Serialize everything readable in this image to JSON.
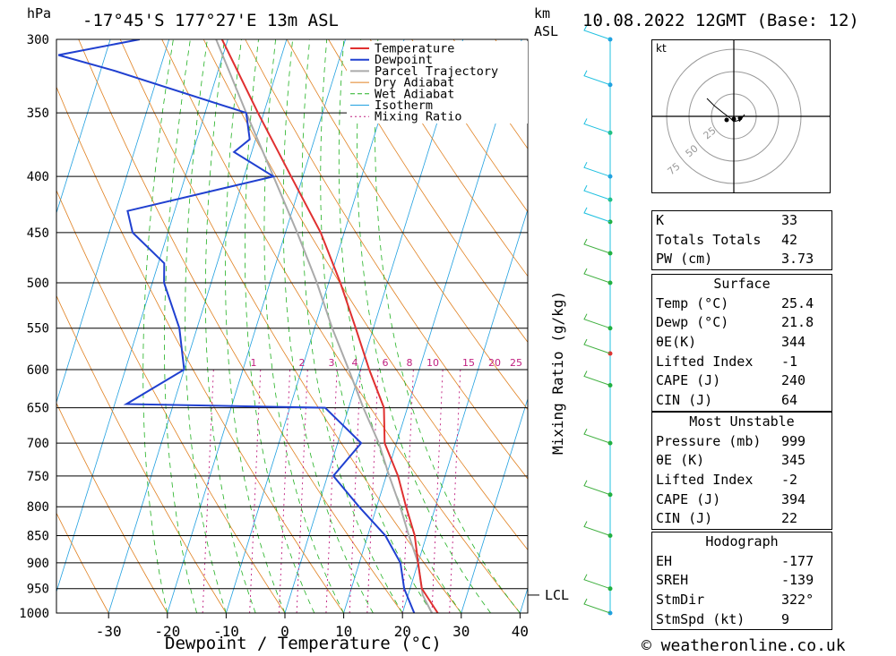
{
  "header": {
    "pressure_unit": "hPa",
    "location": "-17°45'S 177°27'E 13m ASL",
    "height_unit_top": "km",
    "height_unit_bottom": "ASL",
    "datetime": "10.08.2022 12GMT (Base: 12)"
  },
  "chart_data": {
    "type": "skew-t log-p",
    "xlabel": "Dewpoint / Temperature (°C)",
    "ylabel_right": "Mixing Ratio (g/kg)",
    "x_ticks": [
      -30,
      -20,
      -10,
      0,
      10,
      20,
      30,
      40
    ],
    "x_tick_labels": [
      "-30",
      "-20",
      "-10",
      "0",
      "10",
      "20",
      "30",
      "40"
    ],
    "pressure_levels": [
      300,
      350,
      400,
      450,
      500,
      550,
      600,
      650,
      700,
      750,
      800,
      850,
      900,
      950,
      1000
    ],
    "pressure_labels": [
      "300",
      "350",
      "400",
      "450",
      "500",
      "550",
      "600",
      "650",
      "700",
      "750",
      "800",
      "850",
      "900",
      "950",
      "1000"
    ],
    "mixing_ratio_labels": [
      "1",
      "2",
      "3",
      "4",
      "6",
      "8",
      "10",
      "15",
      "20",
      "25"
    ],
    "lcl_label": "LCL",
    "lcl_pressure": 963,
    "legend": [
      "Temperature",
      "Dewpoint",
      "Parcel Trajectory",
      "Dry Adiabat",
      "Wet Adiabat",
      "Isotherm",
      "Mixing Ratio"
    ],
    "colors": {
      "temperature": "#e03030",
      "dewpoint": "#2040d0",
      "parcel": "#aaaaaa",
      "dry_adiabat": "#e08020",
      "wet_adiabat": "#20b020",
      "isotherm": "#20a0e0",
      "mixing_ratio": "#c02080"
    },
    "temperature": [
      [
        1000,
        26
      ],
      [
        950,
        22
      ],
      [
        900,
        20
      ],
      [
        850,
        18
      ],
      [
        800,
        15
      ],
      [
        750,
        12
      ],
      [
        700,
        8
      ],
      [
        650,
        6
      ],
      [
        600,
        1.5
      ],
      [
        550,
        -3
      ],
      [
        500,
        -8
      ],
      [
        450,
        -14
      ],
      [
        400,
        -22
      ],
      [
        350,
        -31
      ],
      [
        300,
        -41
      ]
    ],
    "dewpoint": [
      [
        1000,
        22
      ],
      [
        950,
        19
      ],
      [
        900,
        17
      ],
      [
        850,
        13
      ],
      [
        800,
        7
      ],
      [
        750,
        1
      ],
      [
        700,
        4
      ],
      [
        650,
        -4
      ],
      [
        645,
        -38
      ],
      [
        600,
        -30
      ],
      [
        550,
        -33
      ],
      [
        500,
        -38
      ],
      [
        480,
        -39
      ],
      [
        450,
        -46
      ],
      [
        430,
        -48
      ],
      [
        400,
        -25
      ],
      [
        380,
        -33
      ],
      [
        370,
        -31
      ],
      [
        350,
        -33
      ],
      [
        320,
        -58
      ],
      [
        310,
        -68
      ],
      [
        300,
        -55
      ]
    ],
    "parcel": [
      [
        1000,
        25
      ],
      [
        963,
        22.5
      ],
      [
        900,
        20
      ],
      [
        850,
        17
      ],
      [
        800,
        14
      ],
      [
        750,
        10.5
      ],
      [
        700,
        7
      ],
      [
        650,
        2.5
      ],
      [
        600,
        -2
      ],
      [
        550,
        -7
      ],
      [
        500,
        -12
      ],
      [
        450,
        -18
      ],
      [
        400,
        -25
      ],
      [
        350,
        -33
      ],
      [
        300,
        -42
      ]
    ]
  },
  "hodograph": {
    "unit_label": "kt",
    "ring_labels": [
      "25",
      "50",
      "75"
    ]
  },
  "indices": {
    "basic": [
      {
        "label": "K",
        "value": "33"
      },
      {
        "label": "Totals Totals",
        "value": "42"
      },
      {
        "label": "PW (cm)",
        "value": "3.73"
      }
    ],
    "surface_title": "Surface",
    "surface": [
      {
        "label": "Temp (°C)",
        "value": "25.4"
      },
      {
        "label": "Dewp (°C)",
        "value": "21.8"
      },
      {
        "label": "θE(K)",
        "value": "344"
      },
      {
        "label": "Lifted Index",
        "value": "-1"
      },
      {
        "label": "CAPE (J)",
        "value": "240"
      },
      {
        "label": "CIN (J)",
        "value": "64"
      }
    ],
    "unstable_title": "Most Unstable",
    "unstable": [
      {
        "label": "Pressure (mb)",
        "value": "999"
      },
      {
        "label": "θE (K)",
        "value": "345"
      },
      {
        "label": "Lifted Index",
        "value": "-2"
      },
      {
        "label": "CAPE (J)",
        "value": "394"
      },
      {
        "label": "CIN (J)",
        "value": "22"
      }
    ],
    "hodo_title": "Hodograph",
    "hodo": [
      {
        "label": "EH",
        "value": "-177"
      },
      {
        "label": "SREH",
        "value": "-139"
      },
      {
        "label": "StmDir",
        "value": "322°"
      },
      {
        "label": "StmSpd (kt)",
        "value": "9"
      }
    ]
  },
  "footer": {
    "credit": "© weatheronline.co.uk"
  }
}
